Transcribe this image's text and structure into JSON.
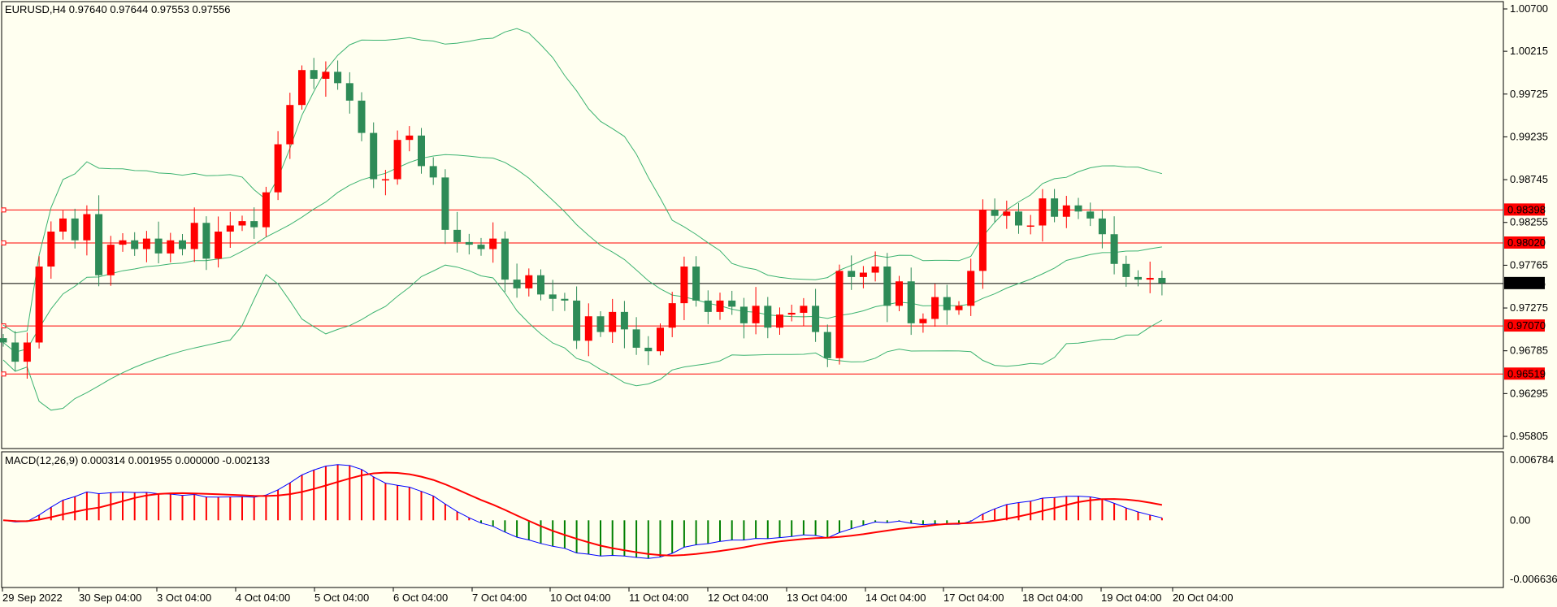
{
  "main": {
    "header": "EURUSD,H4  0.97640 0.97644 0.97553 0.97556",
    "price_labels": [
      "1.00700",
      "1.00215",
      "0.99725",
      "0.99235",
      "0.98745",
      "0.98255",
      "0.97765",
      "0.97275",
      "0.96785",
      "0.96295",
      "0.95805"
    ],
    "hlines": [
      {
        "label": "0.98398",
        "price": 0.98398,
        "color": "#ff0000"
      },
      {
        "label": "0.98020",
        "price": 0.9802,
        "color": "#ff0000"
      },
      {
        "label": "0.97070",
        "price": 0.9707,
        "color": "#ff0000"
      },
      {
        "label": "0.96519",
        "price": 0.96519,
        "color": "#ff0000"
      }
    ],
    "current": {
      "label": "0.97556",
      "price": 0.97556,
      "color": "#000000"
    }
  },
  "macd": {
    "header": "MACD(12,26,9) 0.000314 0.001955 0.000000 -0.002133",
    "scale_labels": [
      "0.006784",
      "0.00",
      "-0.006636"
    ]
  },
  "time_labels": [
    "29 Sep 2022",
    "30 Sep 04:00",
    "3 Oct 04:00",
    "4 Oct 04:00",
    "5 Oct 04:00",
    "6 Oct 04:00",
    "7 Oct 04:00",
    "10 Oct 04:00",
    "11 Oct 04:00",
    "12 Oct 04:00",
    "13 Oct 04:00",
    "14 Oct 04:00",
    "17 Oct 04:00",
    "18 Oct 04:00",
    "19 Oct 04:00",
    "20 Oct 04:00"
  ],
  "colors": {
    "background": "#fffff0",
    "bull": "#2e8b57",
    "bear": "#ff0000",
    "bands": "#3cb371",
    "macd_main": "#0000ff",
    "macd_signal": "#ff0000",
    "hist_pos": "#ff0000",
    "hist_neg": "#008000"
  },
  "chart_data": {
    "type": "candlestick",
    "symbol": "EURUSD",
    "timeframe": "H4",
    "ylim": [
      0.95805,
      1.007
    ],
    "indicators": [
      "Bollinger Bands",
      "MACD(12,26,9)"
    ],
    "closes": [
      0.9688,
      0.9666,
      0.9688,
      0.9775,
      0.9815,
      0.983,
      0.9805,
      0.9835,
      0.9765,
      0.98,
      0.9805,
      0.9795,
      0.9807,
      0.979,
      0.9805,
      0.9795,
      0.9825,
      0.9784,
      0.9815,
      0.9822,
      0.9827,
      0.982,
      0.986,
      0.9915,
      0.996,
      1.0,
      0.999,
      0.9998,
      0.9985,
      0.9965,
      0.9928,
      0.9875,
      0.9875,
      0.992,
      0.9925,
      0.989,
      0.9877,
      0.9817,
      0.9803,
      0.98,
      0.9795,
      0.9807,
      0.976,
      0.975,
      0.9765,
      0.9743,
      0.9738,
      0.9736,
      0.969,
      0.9718,
      0.97,
      0.9723,
      0.9703,
      0.9682,
      0.9678,
      0.9705,
      0.9733,
      0.9775,
      0.9736,
      0.9723,
      0.9736,
      0.9729,
      0.971,
      0.973,
      0.9705,
      0.972,
      0.9722,
      0.973,
      0.97,
      0.967,
      0.977,
      0.9763,
      0.9768,
      0.9775,
      0.973,
      0.9758,
      0.971,
      0.9715,
      0.974,
      0.9725,
      0.973,
      0.977,
      0.984,
      0.9833,
      0.9838,
      0.9822,
      0.9822,
      0.9853,
      0.9832,
      0.9845,
      0.9838,
      0.983,
      0.9812,
      0.9778,
      0.9763,
      0.976,
      0.9762,
      0.9756
    ]
  }
}
